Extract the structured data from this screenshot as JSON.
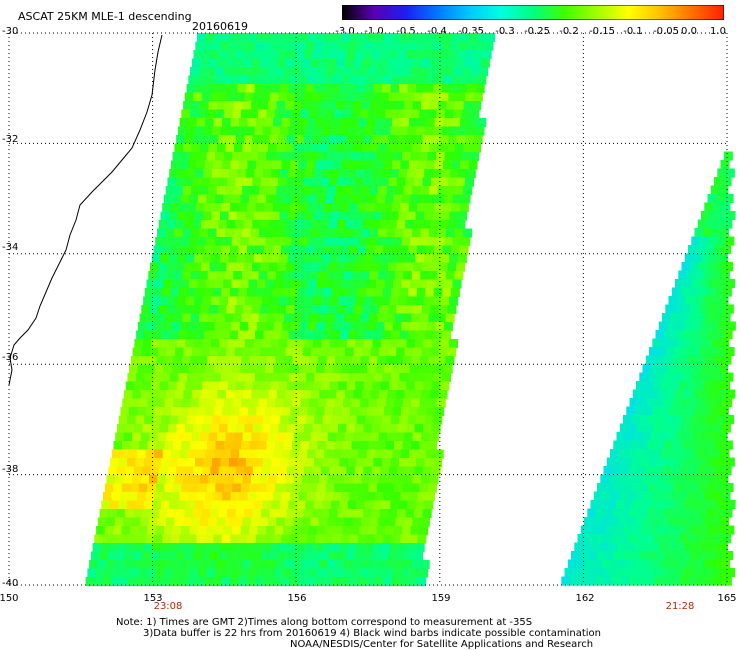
{
  "header": {
    "title": "ASCAT 25KM MLE-1 descending",
    "date": "20160619"
  },
  "colorbar": {
    "labels": [
      "-3.0",
      "-1.0",
      "-0.5",
      "-0.4",
      "-0.35",
      "-0.3",
      "-0.25",
      "-0.2",
      "-0.15",
      "-0.1",
      "-0.05",
      "0.0",
      "1.0"
    ],
    "colors": [
      "#000000",
      "#5a00b4",
      "#1e1ef0",
      "#0078ff",
      "#00c8ff",
      "#00ffe0",
      "#00ff80",
      "#40ff00",
      "#a0ff00",
      "#ffff00",
      "#ffc000",
      "#ff7000",
      "#ff2000"
    ]
  },
  "map": {
    "lon_labels": [
      "150",
      "153",
      "156",
      "159",
      "162",
      "165"
    ],
    "lat_labels": [
      "-30",
      "-32",
      "-34",
      "-36",
      "-38",
      "-40"
    ],
    "lon_range": [
      150,
      165
    ],
    "lat_range": [
      -30,
      -40
    ],
    "grid": "dotted",
    "swath_times": [
      "23:08",
      "21:28"
    ]
  },
  "notes": {
    "line1": "Note: 1) Times are GMT 2)Times along bottom correspond to measurement at -35S",
    "line2": "3)Data buffer is 22 hrs from 20160619 4) Black wind barbs indicate possible contamination",
    "line3": "NOAA/NESDIS/Center for Satellite Applications and Research"
  }
}
